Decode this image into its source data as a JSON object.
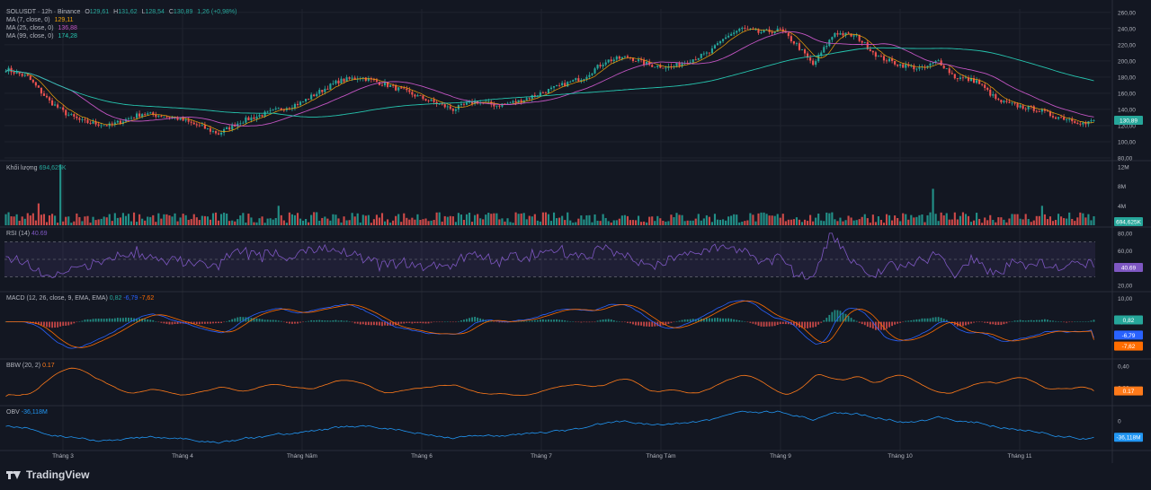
{
  "header": {
    "symbol_line": "SOLUSDT · 12h · Binance",
    "ohlc_o_label": "O",
    "ohlc_o": "129,61",
    "ohlc_h_label": "H",
    "ohlc_h": "131,62",
    "ohlc_l_label": "L",
    "ohlc_l": "128,54",
    "ohlc_c_label": "C",
    "ohlc_c": "130,89",
    "change": "1,26 (+0,98%)"
  },
  "indicators": {
    "ma7_label": "MA (7, close, 0)",
    "ma7_value": "129,11",
    "ma25_label": "MA (25, close, 0)",
    "ma25_value": "136,88",
    "ma99_label": "MA (99, close, 0)",
    "ma99_value": "174,28",
    "volume_label": "Khối lượng",
    "volume_value": "694,625K",
    "rsi_label": "RSI (14)",
    "rsi_value": "40.69",
    "macd_label": "MACD (12, 26, close, 9, EMA, EMA)",
    "macd_hist": "0,82",
    "macd_line": "-6,79",
    "macd_signal": "-7,62",
    "bbw_label": "BBW (20, 2)",
    "bbw_value": "0.17",
    "obv_label": "OBV",
    "obv_value": "-36,118M"
  },
  "colors": {
    "background": "#131722",
    "grid": "#1f232e",
    "bull": "#26a69a",
    "bear": "#ef5350",
    "ma7": "#f0a30a",
    "ma25": "#c154c1",
    "ma99": "#26c6b0",
    "rsi": "#7e57c2",
    "macd_line": "#2962ff",
    "macd_signal": "#ff6d00",
    "bbw": "#ff7a1a",
    "obv": "#2196f3"
  },
  "chart_data": [
    {
      "type": "candlestick",
      "pane": "price",
      "yticks": [
        "260,00",
        "240,00",
        "220,00",
        "200,00",
        "180,00",
        "160,00",
        "140,00",
        "120,00",
        "100,00",
        "80,00"
      ],
      "ylim": [
        80,
        262
      ],
      "last_price_label": "130,89",
      "x_labels": [
        "Tháng 3",
        "Tháng 4",
        "Tháng Năm",
        "Tháng 6",
        "Tháng 7",
        "Tháng Tám",
        "Tháng 9",
        "Tháng 10",
        "Tháng 11"
      ],
      "close_path": [
        [
          0,
          190
        ],
        [
          8,
          180
        ],
        [
          16,
          150
        ],
        [
          22,
          135
        ],
        [
          28,
          125
        ],
        [
          38,
          120
        ],
        [
          50,
          135
        ],
        [
          62,
          130
        ],
        [
          72,
          118
        ],
        [
          78,
          110
        ],
        [
          86,
          125
        ],
        [
          100,
          140
        ],
        [
          108,
          148
        ],
        [
          114,
          160
        ],
        [
          122,
          175
        ],
        [
          130,
          180
        ],
        [
          140,
          170
        ],
        [
          148,
          160
        ],
        [
          156,
          150
        ],
        [
          164,
          140
        ],
        [
          172,
          150
        ],
        [
          180,
          145
        ],
        [
          188,
          150
        ],
        [
          196,
          160
        ],
        [
          204,
          170
        ],
        [
          212,
          180
        ],
        [
          220,
          200
        ],
        [
          228,
          205
        ],
        [
          236,
          195
        ],
        [
          244,
          192
        ],
        [
          250,
          200
        ],
        [
          258,
          210
        ],
        [
          264,
          230
        ],
        [
          270,
          240
        ],
        [
          276,
          235
        ],
        [
          284,
          238
        ],
        [
          290,
          220
        ],
        [
          296,
          195
        ],
        [
          304,
          235
        ],
        [
          312,
          230
        ],
        [
          320,
          205
        ],
        [
          328,
          195
        ],
        [
          336,
          190
        ],
        [
          342,
          200
        ],
        [
          348,
          180
        ],
        [
          356,
          175
        ],
        [
          364,
          150
        ],
        [
          370,
          145
        ],
        [
          378,
          140
        ],
        [
          384,
          132
        ],
        [
          390,
          128
        ],
        [
          396,
          122
        ],
        [
          402,
          131
        ]
      ],
      "ma7": [
        131,
        129.11
      ],
      "ma25_end": 136.88,
      "ma99_start": 210,
      "ma99_end": 174.28
    },
    {
      "type": "bar",
      "pane": "volume",
      "yticks": [
        "12M",
        "8M",
        "4M"
      ],
      "ylim": [
        0,
        12
      ],
      "last_label": "694,625K",
      "spikes_M": [
        [
          20,
          12.5
        ],
        [
          340,
          7.5
        ],
        [
          12,
          4.5
        ],
        [
          100,
          4.0
        ],
        [
          380,
          4.0
        ]
      ]
    },
    {
      "type": "line",
      "pane": "rsi",
      "yticks": [
        "80,00",
        "60,00",
        "40,00",
        "20,00"
      ],
      "ylim": [
        15,
        85
      ],
      "band": [
        30,
        70
      ],
      "last": 40.69
    },
    {
      "type": "line",
      "pane": "macd",
      "yticks": [
        "10,00",
        "0,00"
      ],
      "ylim": [
        -15,
        12
      ],
      "hist_last": 0.82,
      "macd_last": -6.79,
      "signal_last": -7.62
    },
    {
      "type": "line",
      "pane": "bbw",
      "yticks": [
        "0,40",
        "0,20"
      ],
      "ylim": [
        0.05,
        0.45
      ],
      "last": 0.17
    },
    {
      "type": "line",
      "pane": "obv",
      "yticks": [
        "0"
      ],
      "last_label": "-36,118M"
    }
  ],
  "branding": {
    "logo_text": "TradingView"
  }
}
